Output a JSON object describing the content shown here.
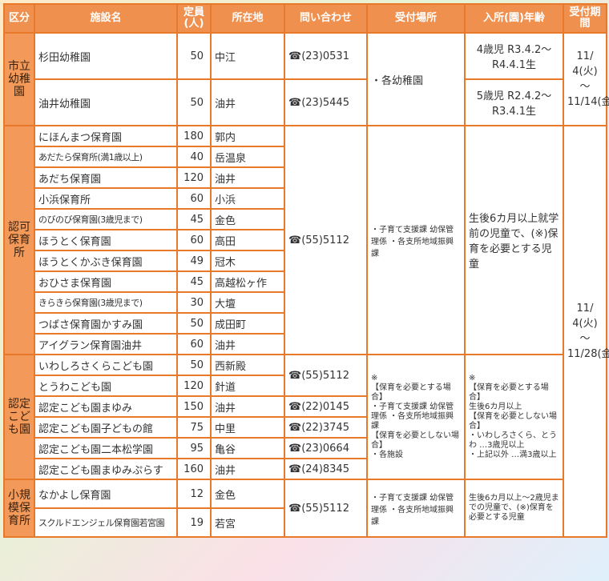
{
  "headers": [
    "区分",
    "施設名",
    "定員(人)",
    "所在地",
    "問い合わせ",
    "受付場所",
    "入所(園)年齢",
    "受付期間"
  ],
  "phone_icon": "☎",
  "colors": {
    "border": "#e8792a",
    "header": "#f0904e",
    "category": "#f39a5a"
  },
  "sections": {
    "kinder": {
      "category": "市立幼稚園",
      "reception": "・各幼稚園",
      "age4": "4歳児 R3.4.2～ R4.4.1生",
      "age5": "5歳児 R2.4.2～ R3.4.1生",
      "period": "11/ 4(火) ～ 11/14(金)",
      "rows": [
        {
          "name": "杉田幼稚園",
          "cap": "50",
          "loc": "中江",
          "tel": "(23)0531"
        },
        {
          "name": "油井幼稚園",
          "cap": "50",
          "loc": "油井",
          "tel": "(23)5445"
        }
      ]
    },
    "nursery": {
      "category": "認可保育所",
      "tel": "(55)5112",
      "reception": "・子育て支援課 幼保管理係 ・各支所地域振興課",
      "age": "生後6カ月以上就学前の児童で、(※)保育を必要とする児童",
      "period": "11/ 4(火) ～ 11/28(金)",
      "rows": [
        {
          "name": "にほんまつ保育園",
          "cap": "180",
          "loc": "郭内"
        },
        {
          "name": "あだたら保育所(満1歳以上)",
          "cap": "40",
          "loc": "岳温泉"
        },
        {
          "name": "あだち保育園",
          "cap": "120",
          "loc": "油井"
        },
        {
          "name": "小浜保育所",
          "cap": "60",
          "loc": "小浜"
        },
        {
          "name": "のびのび保育園(3歳児まで)",
          "cap": "45",
          "loc": "金色"
        },
        {
          "name": "ほうとく保育園",
          "cap": "60",
          "loc": "高田"
        },
        {
          "name": "ほうとくかぶき保育園",
          "cap": "49",
          "loc": "冠木"
        },
        {
          "name": "おひさま保育園",
          "cap": "45",
          "loc": "高越松ヶ作"
        },
        {
          "name": "きらきら保育園(3歳児まで)",
          "cap": "30",
          "loc": "大壇"
        },
        {
          "name": "つばさ保育園かすみ園",
          "cap": "50",
          "loc": "成田町"
        },
        {
          "name": "アイグラン保育園油井",
          "cap": "60",
          "loc": "油井"
        }
      ]
    },
    "kodomo": {
      "category": "認定こども園",
      "reception_mark": "※",
      "reception_need": "【保育を必要とする場合】",
      "reception_need_body": "・子育て支援課 幼保管理係 ・各支所地域振興課",
      "reception_noneed": "【保育を必要としない場合】",
      "reception_noneed_body": "・各施設",
      "age_mark": "※",
      "age_need": "【保育を必要とする場合】",
      "age_need_body": "生後6カ月以上",
      "age_noneed": "【保育を必要としない場合】",
      "age_noneed_1": "・いわしろさくら、とうわ …3歳児以上",
      "age_noneed_2": "・上記以外 …満3歳以上",
      "rows": [
        {
          "name": "いわしろさくらこども園",
          "cap": "50",
          "loc": "西新殿",
          "tel": "(55)5112"
        },
        {
          "name": "とうわこども園",
          "cap": "120",
          "loc": "針道"
        },
        {
          "name": "認定こども園まゆみ",
          "cap": "150",
          "loc": "油井",
          "tel": "(22)0145"
        },
        {
          "name": "認定こども園子どもの館",
          "cap": "75",
          "loc": "中里",
          "tel": "(22)3745"
        },
        {
          "name": "認定こども園二本松学園",
          "cap": "95",
          "loc": "亀谷",
          "tel": "(23)0664"
        },
        {
          "name": "認定こども園まゆみぷらす",
          "cap": "160",
          "loc": "油井",
          "tel": "(24)8345"
        }
      ]
    },
    "small": {
      "category": "小規模保育所",
      "tel": "(55)5112",
      "reception": "・子育て支援課 幼保管理係 ・各支所地域振興課",
      "age": "生後6カ月以上～2歳児までの児童で、(※)保育を必要とする児童",
      "rows": [
        {
          "name": "なかよし保育園",
          "cap": "12",
          "loc": "金色"
        },
        {
          "name": "スクルドエンジェル保育園若宮園",
          "cap": "19",
          "loc": "若宮"
        }
      ]
    }
  }
}
